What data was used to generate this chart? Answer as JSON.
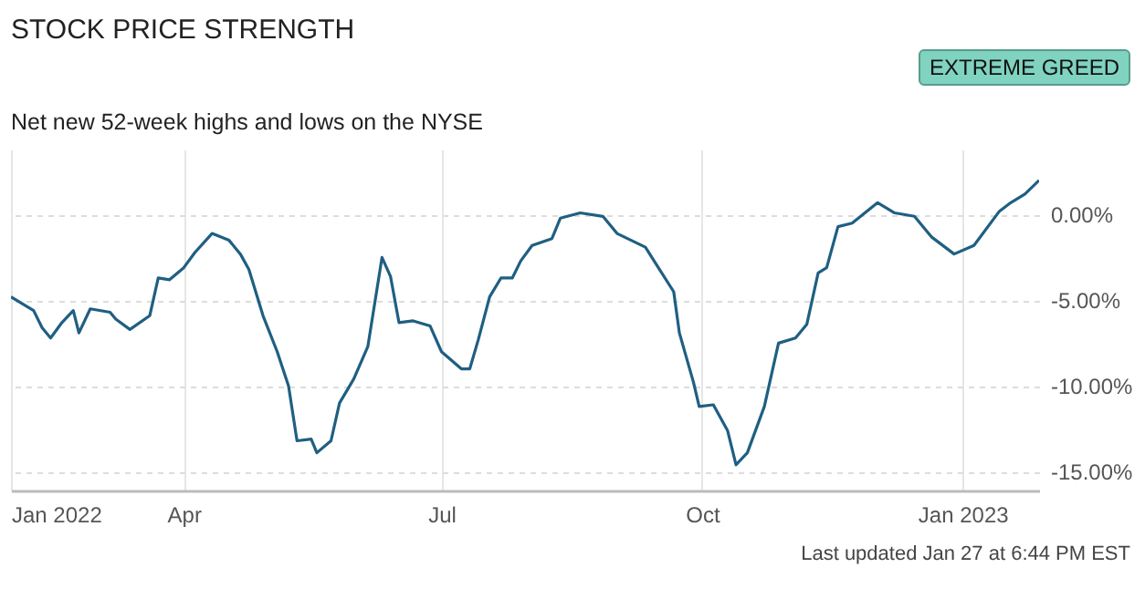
{
  "chart_data": {
    "type": "line",
    "title": "STOCK PRICE STRENGTH",
    "subtitle": "Net new 52-week highs and lows on the NYSE",
    "annotations": [
      "EXTREME GREED",
      "Last updated Jan 27 at 6:44 PM EST"
    ],
    "x": [
      "2022-01-30",
      "2022-02-07",
      "2022-02-10",
      "2022-02-13",
      "2022-02-17",
      "2022-02-21",
      "2022-02-23",
      "2022-02-27",
      "2022-03-06",
      "2022-03-08",
      "2022-03-13",
      "2022-03-20",
      "2022-03-23",
      "2022-03-27",
      "2022-04-01",
      "2022-04-05",
      "2022-04-11",
      "2022-04-17",
      "2022-04-21",
      "2022-04-24",
      "2022-04-29",
      "2022-05-04",
      "2022-05-08",
      "2022-05-11",
      "2022-05-16",
      "2022-05-18",
      "2022-05-23",
      "2022-05-26",
      "2022-05-31",
      "2022-06-05",
      "2022-06-10",
      "2022-06-13",
      "2022-06-16",
      "2022-06-21",
      "2022-06-27",
      "2022-07-01",
      "2022-07-08",
      "2022-07-11",
      "2022-07-14",
      "2022-07-18",
      "2022-07-22",
      "2022-07-26",
      "2022-07-29",
      "2022-08-02",
      "2022-08-09",
      "2022-08-12",
      "2022-08-19",
      "2022-08-27",
      "2022-09-01",
      "2022-09-11",
      "2022-09-16",
      "2022-09-21",
      "2022-09-23",
      "2022-09-28",
      "2022-09-30",
      "2022-10-05",
      "2022-10-10",
      "2022-10-13",
      "2022-10-17",
      "2022-10-23",
      "2022-10-28",
      "2022-11-03",
      "2022-11-07",
      "2022-11-11",
      "2022-11-14",
      "2022-11-18",
      "2022-11-23",
      "2022-12-02",
      "2022-12-08",
      "2022-12-15",
      "2022-12-21",
      "2022-12-29",
      "2023-01-05",
      "2023-01-14",
      "2023-01-18",
      "2023-01-23",
      "2023-01-28"
    ],
    "series": [
      {
        "color": "#1f5f82",
        "values": [
          -4.8,
          -5.6,
          -6.6,
          -7.2,
          -6.3,
          -5.6,
          -6.9,
          -5.5,
          -5.7,
          -6.1,
          -6.7,
          -5.9,
          -3.7,
          -3.8,
          -3.1,
          -2.2,
          -1.1,
          -1.5,
          -2.3,
          -3.2,
          -5.9,
          -8.0,
          -10.0,
          -13.2,
          -13.1,
          -13.9,
          -13.2,
          -11.0,
          -9.6,
          -7.7,
          -2.5,
          -3.6,
          -6.3,
          -6.2,
          -6.5,
          -8.0,
          -9.0,
          -9.0,
          -7.3,
          -4.8,
          -3.7,
          -3.7,
          -2.7,
          -1.8,
          -1.4,
          -0.2,
          0.1,
          -0.1,
          -1.1,
          -1.9,
          -3.2,
          -4.5,
          -6.9,
          -9.8,
          -11.2,
          -11.1,
          -12.6,
          -14.6,
          -13.9,
          -11.2,
          -7.5,
          -7.2,
          -6.4,
          -3.4,
          -3.1,
          -0.7,
          -0.5,
          0.7,
          0.1,
          -0.1,
          -1.3,
          -2.3,
          -1.8,
          0.2,
          0.7,
          1.2,
          2.0
        ]
      }
    ],
    "xlim": [
      "2022-01-30",
      "2023-01-28"
    ],
    "xticks": [
      {
        "value": "2022-01-30",
        "label": "Jan 2022"
      },
      {
        "value": "2022-04-01",
        "label": "Apr"
      },
      {
        "value": "2022-07-01",
        "label": "Jul"
      },
      {
        "value": "2022-10-01",
        "label": "Oct"
      },
      {
        "value": "2023-01-01",
        "label": "Jan 2023"
      }
    ],
    "ylim": [
      -16.1,
      3.8
    ],
    "yticks": [
      {
        "value": -15,
        "label": "-15.00%"
      },
      {
        "value": -10,
        "label": "-10.00%"
      },
      {
        "value": -5,
        "label": "-5.00%"
      },
      {
        "value": 0,
        "label": "0.00%"
      }
    ],
    "grid": true,
    "marker": "none",
    "line_style": "solid"
  }
}
